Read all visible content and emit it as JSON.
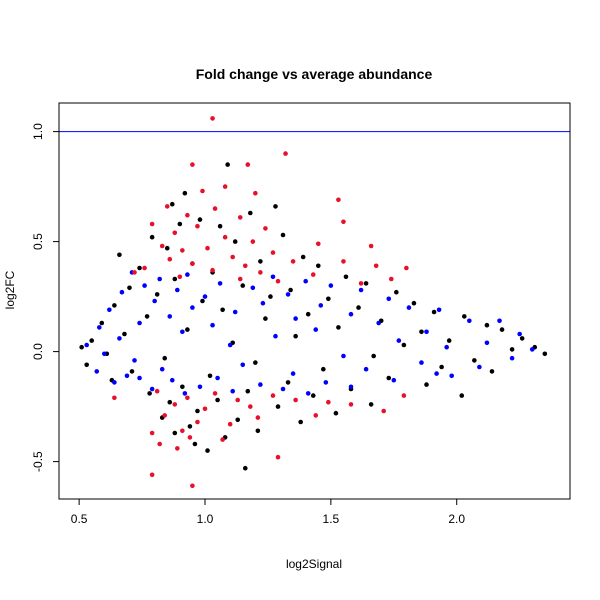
{
  "chart_data": {
    "type": "scatter",
    "title": "Fold change vs average abundance",
    "xlabel": "log2Signal",
    "ylabel": "log2FC",
    "xlim": [
      0.42,
      2.45
    ],
    "ylim": [
      -0.67,
      1.13
    ],
    "xticks": [
      0.5,
      1.0,
      1.5,
      2.0
    ],
    "xtick_labels": [
      "0.5",
      "1.0",
      "1.5",
      "2.0"
    ],
    "yticks": [
      -0.5,
      0.0,
      0.5,
      1.0
    ],
    "ytick_labels": [
      "-0.5",
      "0.0",
      "0.5",
      "1.0"
    ],
    "grid": false,
    "hline": {
      "y": 1.0,
      "color": "#0000ff"
    },
    "colors": {
      "black": "#000000",
      "blue": "#0000ff",
      "red": "#e8102a"
    },
    "series": [
      {
        "color": "#000000",
        "points": [
          [
            1.09,
            0.85
          ],
          [
            0.92,
            0.72
          ],
          [
            0.87,
            0.67
          ],
          [
            1.28,
            0.66
          ],
          [
            1.18,
            0.63
          ],
          [
            0.98,
            0.6
          ],
          [
            0.9,
            0.58
          ],
          [
            1.06,
            0.57
          ],
          [
            1.31,
            0.53
          ],
          [
            0.79,
            0.52
          ],
          [
            1.12,
            0.5
          ],
          [
            0.85,
            0.47
          ],
          [
            0.66,
            0.44
          ],
          [
            1.39,
            0.43
          ],
          [
            1.22,
            0.41
          ],
          [
            0.95,
            0.4
          ],
          [
            1.45,
            0.39
          ],
          [
            0.74,
            0.38
          ],
          [
            1.03,
            0.36
          ],
          [
            1.56,
            0.34
          ],
          [
            0.88,
            0.33
          ],
          [
            1.64,
            0.31
          ],
          [
            1.15,
            0.3
          ],
          [
            0.7,
            0.29
          ],
          [
            1.34,
            0.28
          ],
          [
            1.76,
            0.27
          ],
          [
            0.81,
            0.26
          ],
          [
            1.26,
            0.25
          ],
          [
            1.49,
            0.24
          ],
          [
            0.99,
            0.23
          ],
          [
            1.83,
            0.22
          ],
          [
            0.64,
            0.21
          ],
          [
            1.61,
            0.2
          ],
          [
            1.07,
            0.19
          ],
          [
            1.91,
            0.18
          ],
          [
            1.41,
            0.17
          ],
          [
            0.77,
            0.16
          ],
          [
            2.03,
            0.16
          ],
          [
            1.24,
            0.15
          ],
          [
            1.7,
            0.14
          ],
          [
            0.59,
            0.13
          ],
          [
            2.12,
            0.12
          ],
          [
            1.53,
            0.11
          ],
          [
            0.93,
            0.1
          ],
          [
            2.18,
            0.1
          ],
          [
            1.86,
            0.09
          ],
          [
            0.68,
            0.08
          ],
          [
            1.36,
            0.07
          ],
          [
            2.26,
            0.06
          ],
          [
            1.97,
            0.05
          ],
          [
            0.55,
            0.05
          ],
          [
            1.11,
            0.04
          ],
          [
            1.79,
            0.03
          ],
          [
            2.31,
            0.02
          ],
          [
            0.51,
            0.02
          ],
          [
            2.22,
            0.01
          ],
          [
            0.61,
            -0.01
          ],
          [
            2.35,
            -0.01
          ],
          [
            1.67,
            -0.02
          ],
          [
            0.84,
            -0.03
          ],
          [
            2.07,
            -0.04
          ],
          [
            1.2,
            -0.05
          ],
          [
            0.53,
            -0.06
          ],
          [
            1.94,
            -0.07
          ],
          [
            1.47,
            -0.08
          ],
          [
            0.71,
            -0.09
          ],
          [
            2.14,
            -0.09
          ],
          [
            1.02,
            -0.11
          ],
          [
            1.73,
            -0.12
          ],
          [
            0.63,
            -0.13
          ],
          [
            1.33,
            -0.14
          ],
          [
            1.88,
            -0.15
          ],
          [
            0.91,
            -0.16
          ],
          [
            1.58,
            -0.17
          ],
          [
            1.17,
            -0.18
          ],
          [
            0.78,
            -0.19
          ],
          [
            1.43,
            -0.2
          ],
          [
            2.02,
            -0.2
          ],
          [
            1.05,
            -0.22
          ],
          [
            0.86,
            -0.23
          ],
          [
            1.66,
            -0.24
          ],
          [
            1.29,
            -0.25
          ],
          [
            0.97,
            -0.27
          ],
          [
            1.52,
            -0.28
          ],
          [
            0.83,
            -0.3
          ],
          [
            1.13,
            -0.31
          ],
          [
            1.38,
            -0.32
          ],
          [
            0.94,
            -0.34
          ],
          [
            1.21,
            -0.36
          ],
          [
            0.88,
            -0.37
          ],
          [
            1.08,
            -0.39
          ],
          [
            0.96,
            -0.42
          ],
          [
            1.01,
            -0.45
          ],
          [
            1.16,
            -0.53
          ]
        ]
      },
      {
        "color": "#0000ff",
        "points": [
          [
            0.71,
            0.36
          ],
          [
            0.93,
            0.35
          ],
          [
            1.27,
            0.34
          ],
          [
            0.82,
            0.33
          ],
          [
            1.4,
            0.32
          ],
          [
            1.06,
            0.31
          ],
          [
            0.76,
            0.3
          ],
          [
            1.5,
            0.3
          ],
          [
            1.19,
            0.29
          ],
          [
            0.89,
            0.28
          ],
          [
            1.62,
            0.28
          ],
          [
            0.67,
            0.27
          ],
          [
            1.33,
            0.26
          ],
          [
            1.0,
            0.25
          ],
          [
            1.73,
            0.24
          ],
          [
            0.8,
            0.23
          ],
          [
            1.23,
            0.22
          ],
          [
            1.46,
            0.21
          ],
          [
            0.95,
            0.2
          ],
          [
            1.81,
            0.2
          ],
          [
            0.62,
            0.19
          ],
          [
            1.12,
            0.18
          ],
          [
            1.58,
            0.17
          ],
          [
            1.93,
            0.19
          ],
          [
            0.86,
            0.16
          ],
          [
            1.36,
            0.15
          ],
          [
            2.05,
            0.14
          ],
          [
            0.74,
            0.13
          ],
          [
            1.69,
            0.13
          ],
          [
            1.03,
            0.12
          ],
          [
            2.17,
            0.14
          ],
          [
            0.58,
            0.11
          ],
          [
            1.44,
            0.1
          ],
          [
            1.88,
            0.09
          ],
          [
            0.91,
            0.09
          ],
          [
            2.25,
            0.08
          ],
          [
            1.28,
            0.07
          ],
          [
            0.66,
            0.06
          ],
          [
            1.77,
            0.05
          ],
          [
            2.12,
            0.04
          ],
          [
            0.53,
            0.03
          ],
          [
            1.1,
            0.03
          ],
          [
            1.96,
            0.02
          ],
          [
            2.3,
            0.01
          ],
          [
            0.6,
            -0.01
          ],
          [
            1.55,
            -0.02
          ],
          [
            2.22,
            -0.03
          ],
          [
            0.72,
            -0.04
          ],
          [
            1.86,
            -0.05
          ],
          [
            1.15,
            -0.06
          ],
          [
            2.09,
            -0.07
          ],
          [
            0.83,
            -0.08
          ],
          [
            1.64,
            -0.08
          ],
          [
            0.57,
            -0.09
          ],
          [
            1.35,
            -0.1
          ],
          [
            1.98,
            -0.11
          ],
          [
            0.69,
            -0.11
          ],
          [
            1.05,
            -0.12
          ],
          [
            1.75,
            -0.13
          ],
          [
            0.87,
            -0.13
          ],
          [
            1.48,
            -0.14
          ],
          [
            0.64,
            -0.14
          ],
          [
            1.22,
            -0.15
          ],
          [
            0.98,
            -0.16
          ],
          [
            1.58,
            -0.16
          ],
          [
            0.79,
            -0.17
          ],
          [
            1.31,
            -0.17
          ],
          [
            1.11,
            -0.18
          ],
          [
            0.92,
            -0.19
          ],
          [
            1.41,
            -0.19
          ],
          [
            0.74,
            -0.12
          ],
          [
            1.92,
            -0.1
          ]
        ]
      },
      {
        "color": "#e8102a",
        "points": [
          [
            1.03,
            1.06
          ],
          [
            1.32,
            0.9
          ],
          [
            0.95,
            0.85
          ],
          [
            1.17,
            0.85
          ],
          [
            1.08,
            0.75
          ],
          [
            0.99,
            0.73
          ],
          [
            1.2,
            0.72
          ],
          [
            1.53,
            0.69
          ],
          [
            0.85,
            0.66
          ],
          [
            1.04,
            0.65
          ],
          [
            0.93,
            0.62
          ],
          [
            1.14,
            0.61
          ],
          [
            1.55,
            0.59
          ],
          [
            0.79,
            0.58
          ],
          [
            0.97,
            0.57
          ],
          [
            1.24,
            0.56
          ],
          [
            0.88,
            0.54
          ],
          [
            1.08,
            0.52
          ],
          [
            1.19,
            0.5
          ],
          [
            1.45,
            0.49
          ],
          [
            0.83,
            0.48
          ],
          [
            1.01,
            0.47
          ],
          [
            1.66,
            0.48
          ],
          [
            0.91,
            0.46
          ],
          [
            1.27,
            0.45
          ],
          [
            1.11,
            0.43
          ],
          [
            0.86,
            0.42
          ],
          [
            1.35,
            0.41
          ],
          [
            1.55,
            0.41
          ],
          [
            0.95,
            0.4
          ],
          [
            1.16,
            0.39
          ],
          [
            0.76,
            0.38
          ],
          [
            1.68,
            0.39
          ],
          [
            1.03,
            0.37
          ],
          [
            1.8,
            0.38
          ],
          [
            1.22,
            0.36
          ],
          [
            0.72,
            0.36
          ],
          [
            1.43,
            0.35
          ],
          [
            0.9,
            0.34
          ],
          [
            1.14,
            0.33
          ],
          [
            1.29,
            0.32
          ],
          [
            1.74,
            0.33
          ],
          [
            1.62,
            0.31
          ],
          [
            0.81,
            -0.18
          ],
          [
            1.04,
            -0.19
          ],
          [
            1.27,
            -0.2
          ],
          [
            0.93,
            -0.21
          ],
          [
            1.13,
            -0.22
          ],
          [
            0.64,
            -0.21
          ],
          [
            1.49,
            -0.23
          ],
          [
            1.36,
            -0.22
          ],
          [
            1.79,
            -0.2
          ],
          [
            0.88,
            -0.24
          ],
          [
            1.18,
            -0.25
          ],
          [
            1.58,
            -0.24
          ],
          [
            1.0,
            -0.26
          ],
          [
            1.71,
            -0.27
          ],
          [
            0.84,
            -0.29
          ],
          [
            1.21,
            -0.3
          ],
          [
            1.44,
            -0.29
          ],
          [
            0.97,
            -0.32
          ],
          [
            1.1,
            -0.33
          ],
          [
            0.79,
            -0.37
          ],
          [
            0.91,
            -0.36
          ],
          [
            0.94,
            -0.39
          ],
          [
            1.07,
            -0.4
          ],
          [
            0.82,
            -0.42
          ],
          [
            0.89,
            -0.44
          ],
          [
            1.29,
            -0.48
          ],
          [
            0.79,
            -0.56
          ],
          [
            0.95,
            -0.61
          ]
        ]
      }
    ]
  }
}
